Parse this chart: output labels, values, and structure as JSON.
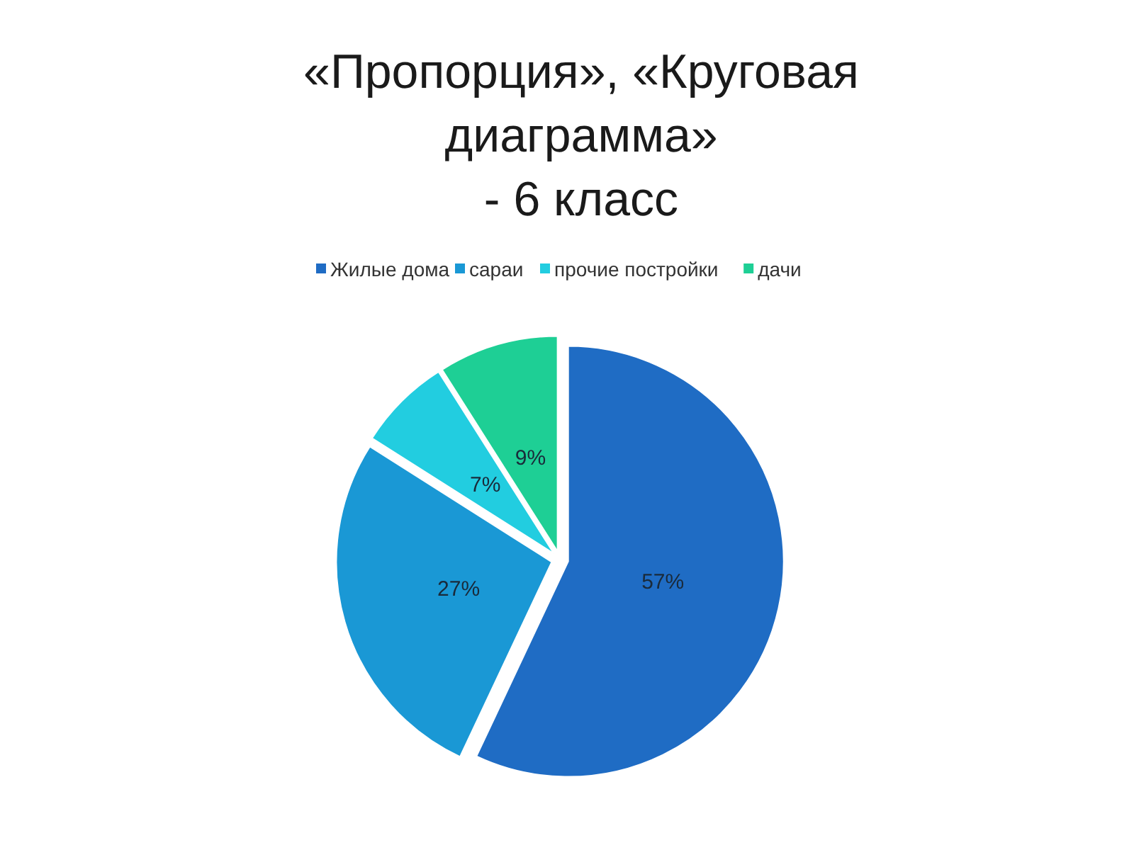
{
  "chart_data": {
    "type": "pie",
    "title": "«Пропорция», «Круговая диаграмма»",
    "subtitle": "- 6 класс",
    "categories": [
      "Жилые дома",
      "сараи",
      "прочие постройки",
      "дачи"
    ],
    "values": [
      57,
      27,
      7,
      9
    ],
    "colors": [
      "#1f6cc4",
      "#1a98d5",
      "#22cde0",
      "#1ecf95"
    ],
    "value_labels": [
      "57%",
      "27%",
      "7%",
      "9%"
    ],
    "legend": "top"
  }
}
